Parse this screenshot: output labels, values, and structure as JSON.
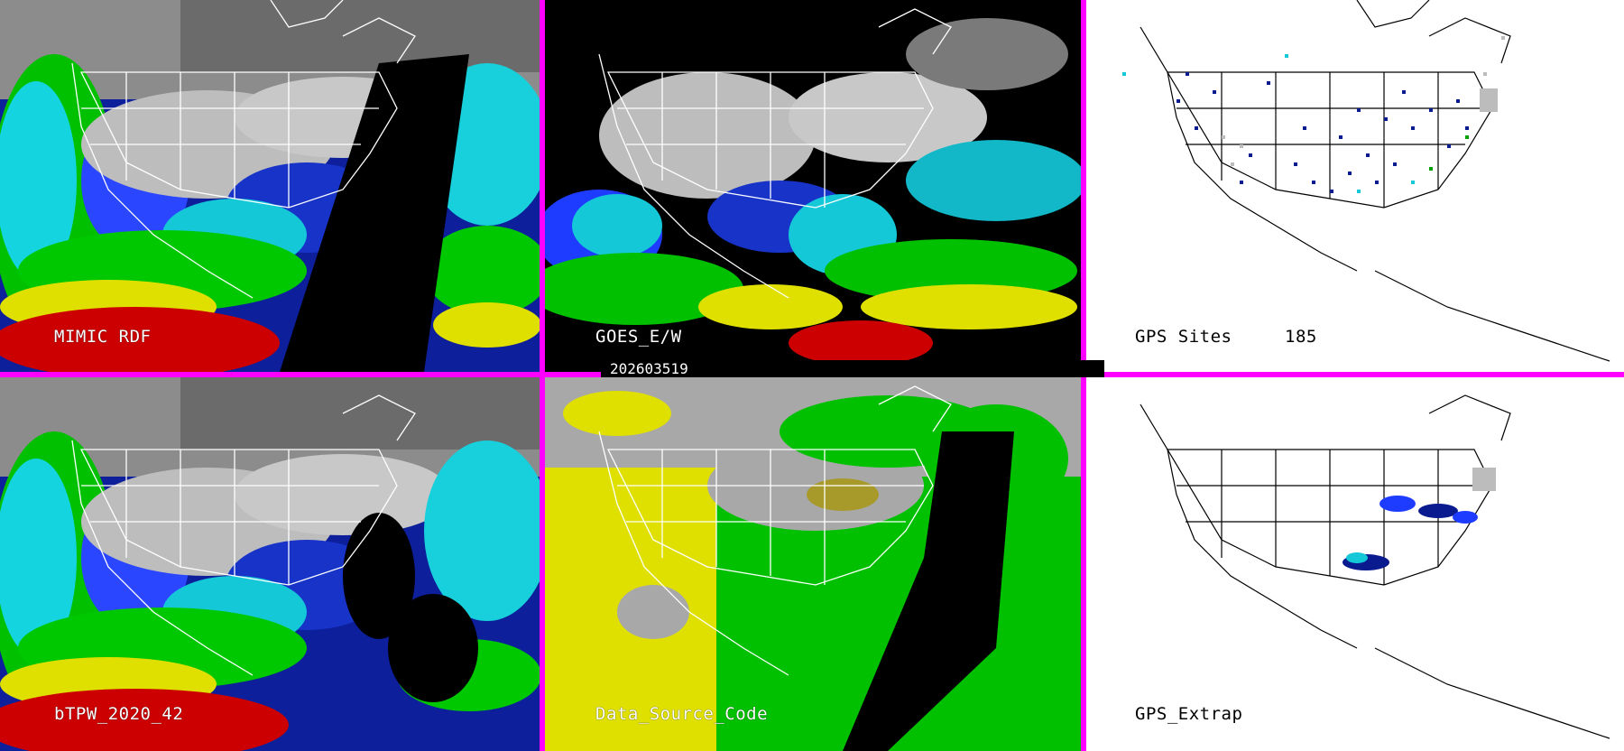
{
  "panels": [
    {
      "id": "mimic",
      "label": "MIMIC RDF"
    },
    {
      "id": "goes",
      "label": "GOES_E/W"
    },
    {
      "id": "gps-sites",
      "label": "GPS Sites",
      "count": "185"
    },
    {
      "id": "btpw",
      "label": "bTPW_2020_42"
    },
    {
      "id": "data-source",
      "label": "Data_Source_Code"
    },
    {
      "id": "gps-extrap",
      "label": "GPS_Extrap"
    }
  ],
  "timestamp": "202603519",
  "colors": {
    "divider": "#ff00ff",
    "palette": [
      "#ffffff",
      "#9a9a9a",
      "#0a1a8f",
      "#1e3cff",
      "#14c8d8",
      "#00d000",
      "#e8e000",
      "#d00000",
      "#000000"
    ]
  }
}
